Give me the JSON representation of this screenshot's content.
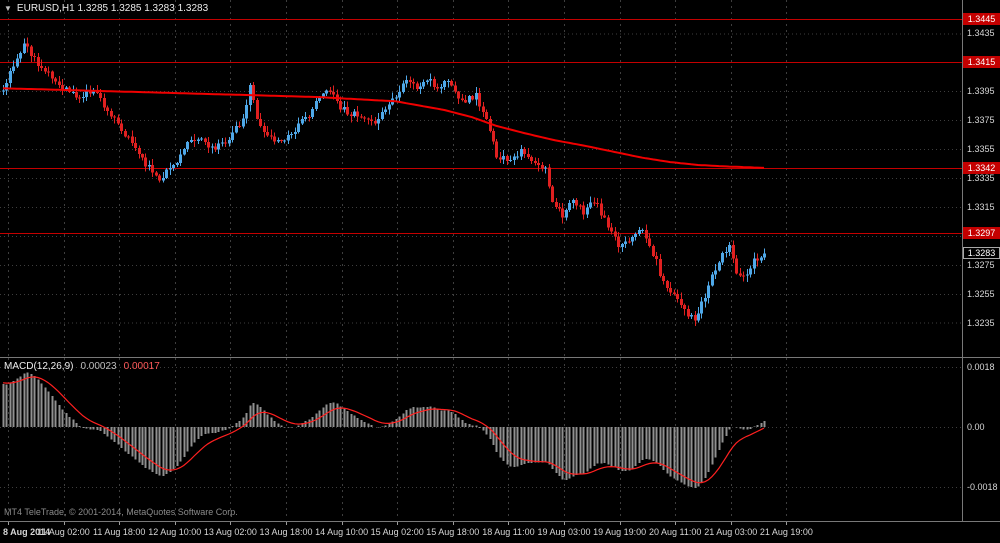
{
  "window": {
    "title_text": "EURUSD,H1 1.3285 1.3285 1.3283 1.3283",
    "symbol": "EURUSD",
    "period": "H1",
    "open": "1.3285",
    "high": "1.3285",
    "low": "1.3283",
    "close": "1.3283"
  },
  "macd": {
    "label": "MACD(12,26,9)",
    "value_main": "0.00023",
    "value_signal": "0.00017",
    "scale_labels": [
      "0.0018",
      "0.00",
      "-0.0018"
    ]
  },
  "copyright": "MT4 TeleTrade, © 2001-2014, MetaQuotes Software Corp.",
  "price_scale": {
    "ticks": [
      {
        "label": "1.3435",
        "value": 1.3435
      },
      {
        "label": "1.3415",
        "value": 1.3415
      },
      {
        "label": "1.3395",
        "value": 1.3395
      },
      {
        "label": "1.3375",
        "value": 1.3375
      },
      {
        "label": "1.3355",
        "value": 1.3355
      },
      {
        "label": "1.3335",
        "value": 1.3335
      },
      {
        "label": "1.3315",
        "value": 1.3315
      },
      {
        "label": "1.3295",
        "value": 1.3295
      },
      {
        "label": "1.3275",
        "value": 1.3275
      },
      {
        "label": "1.3255",
        "value": 1.3255
      },
      {
        "label": "1.3235",
        "value": 1.3235
      }
    ],
    "level_labels": [
      {
        "text": "1.3445",
        "value": 1.3445
      },
      {
        "text": "1.3415",
        "value": 1.3415
      },
      {
        "text": "1.3342",
        "value": 1.3342
      },
      {
        "text": "1.3297",
        "value": 1.3297
      }
    ],
    "current_price_label": {
      "text": "1.3283",
      "value": 1.3283
    }
  },
  "colors": {
    "background": "#000000",
    "grid": "#3e3e3e",
    "bull_candle": "#4fa8e8",
    "bear_candle": "#e02020",
    "ma_line": "#f00000",
    "level_line": "#c40000",
    "level_label_bg": "#c40000",
    "macd_histogram": "#909090",
    "macd_signal": "#ff2020",
    "text": "#d6d6d6"
  },
  "chart_data": [
    {
      "type": "candlestick",
      "title": "EURUSD,H1",
      "bars": 220,
      "ylim": [
        1.3212,
        1.3458
      ],
      "y_ticks": [
        1.3435,
        1.3415,
        1.3395,
        1.3375,
        1.3355,
        1.3335,
        1.3315,
        1.3295,
        1.3275,
        1.3255,
        1.3235
      ],
      "x_tick_labels": [
        "8 Aug 2014",
        "11 Aug 02:00",
        "11 Aug 18:00",
        "12 Aug 10:00",
        "13 Aug 02:00",
        "13 Aug 18:00",
        "14 Aug 10:00",
        "15 Aug 02:00",
        "15 Aug 18:00",
        "18 Aug 11:00",
        "19 Aug 03:00",
        "19 Aug 19:00",
        "20 Aug 11:00",
        "21 Aug 03:00",
        "21 Aug 19:00"
      ],
      "levels": [
        1.3445,
        1.3415,
        1.3342,
        1.3297
      ],
      "current_price": 1.3283,
      "prehistory_keypoints": [
        [
          -45,
          1.3305
        ],
        [
          -30,
          1.334
        ],
        [
          -15,
          1.3372
        ],
        [
          -6,
          1.339
        ],
        [
          -1,
          1.3396
        ]
      ],
      "close_keypoints": [
        [
          0,
          1.3398
        ],
        [
          3,
          1.3412
        ],
        [
          6,
          1.3428
        ],
        [
          9,
          1.3418
        ],
        [
          12,
          1.3408
        ],
        [
          17,
          1.3398
        ],
        [
          22,
          1.339
        ],
        [
          26,
          1.3397
        ],
        [
          30,
          1.3382
        ],
        [
          34,
          1.3367
        ],
        [
          38,
          1.3356
        ],
        [
          42,
          1.3342
        ],
        [
          45,
          1.3335
        ],
        [
          49,
          1.3344
        ],
        [
          53,
          1.3358
        ],
        [
          57,
          1.3362
        ],
        [
          61,
          1.3354
        ],
        [
          65,
          1.3363
        ],
        [
          69,
          1.3374
        ],
        [
          71,
          1.3398
        ],
        [
          73,
          1.3378
        ],
        [
          75,
          1.3366
        ],
        [
          79,
          1.336
        ],
        [
          83,
          1.3366
        ],
        [
          87,
          1.3376
        ],
        [
          91,
          1.339
        ],
        [
          94,
          1.3397
        ],
        [
          97,
          1.3384
        ],
        [
          102,
          1.3377
        ],
        [
          106,
          1.3372
        ],
        [
          110,
          1.3383
        ],
        [
          113,
          1.3393
        ],
        [
          116,
          1.3404
        ],
        [
          119,
          1.3397
        ],
        [
          122,
          1.3403
        ],
        [
          125,
          1.3397
        ],
        [
          128,
          1.3403
        ],
        [
          130,
          1.3394
        ],
        [
          133,
          1.3389
        ],
        [
          136,
          1.3392
        ],
        [
          139,
          1.3374
        ],
        [
          142,
          1.3351
        ],
        [
          145,
          1.3348
        ],
        [
          149,
          1.3353
        ],
        [
          153,
          1.3344
        ],
        [
          156,
          1.3341
        ],
        [
          158,
          1.332
        ],
        [
          161,
          1.331
        ],
        [
          164,
          1.3318
        ],
        [
          167,
          1.3312
        ],
        [
          170,
          1.3319
        ],
        [
          172,
          1.3311
        ],
        [
          175,
          1.3296
        ],
        [
          177,
          1.3288
        ],
        [
          180,
          1.3293
        ],
        [
          183,
          1.3301
        ],
        [
          185,
          1.3293
        ],
        [
          188,
          1.3277
        ],
        [
          190,
          1.3262
        ],
        [
          192,
          1.3258
        ],
        [
          195,
          1.3249
        ],
        [
          197,
          1.3241
        ],
        [
          199,
          1.3236
        ],
        [
          202,
          1.3253
        ],
        [
          204,
          1.3268
        ],
        [
          207,
          1.3281
        ],
        [
          209,
          1.3289
        ],
        [
          211,
          1.3271
        ],
        [
          213,
          1.3267
        ],
        [
          216,
          1.3278
        ],
        [
          219,
          1.3283
        ]
      ],
      "ma_keypoints": [
        [
          0,
          1.3397
        ],
        [
          30,
          1.3395
        ],
        [
          60,
          1.3393
        ],
        [
          90,
          1.3391
        ],
        [
          113,
          1.3388
        ],
        [
          127,
          1.3382
        ],
        [
          135,
          1.3377
        ],
        [
          142,
          1.3371
        ],
        [
          150,
          1.3366
        ],
        [
          159,
          1.3361
        ],
        [
          168,
          1.3357
        ],
        [
          176,
          1.3353
        ],
        [
          184,
          1.3349
        ],
        [
          192,
          1.3346
        ],
        [
          200,
          1.3344
        ],
        [
          208,
          1.3343
        ],
        [
          219,
          1.3342
        ]
      ]
    },
    {
      "type": "macd",
      "params": [
        12,
        26,
        9
      ],
      "current_main": 0.00023,
      "current_signal": 0.00017,
      "y_ticks": [
        0.0018,
        0,
        -0.0018
      ],
      "ylim": [
        -0.0028,
        0.0021
      ]
    }
  ]
}
